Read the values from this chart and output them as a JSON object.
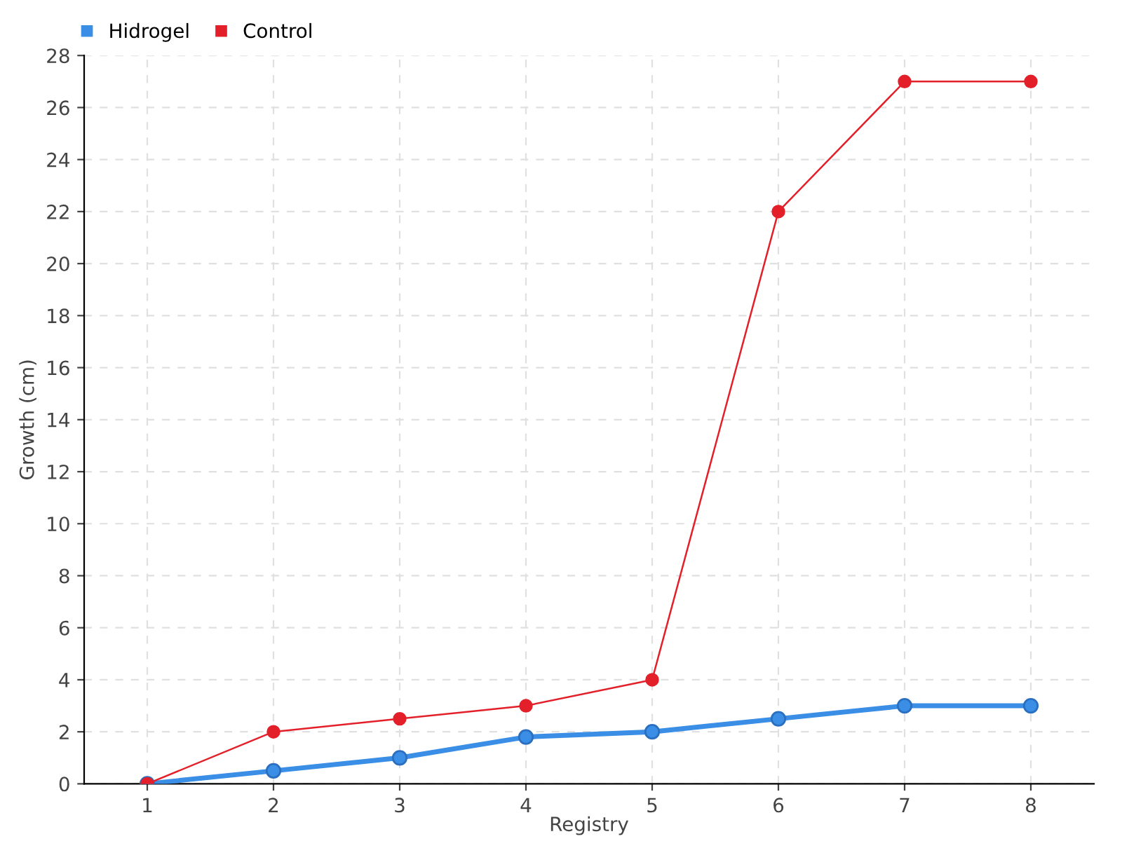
{
  "chart_data": {
    "type": "line",
    "xlabel": "Registry",
    "ylabel": "Growth (cm)",
    "categories": [
      "1",
      "2",
      "3",
      "4",
      "5",
      "6",
      "7",
      "8"
    ],
    "series": [
      {
        "name": "Hidrogel",
        "color": "#3a8ee6",
        "values": [
          0,
          0.5,
          1,
          1.8,
          2,
          2.5,
          3,
          3
        ]
      },
      {
        "name": "Control",
        "color": "#e3202a",
        "values": [
          0,
          2,
          2.5,
          3,
          4,
          22,
          27,
          27
        ]
      }
    ],
    "ylim": [
      0,
      28
    ],
    "yticks": [
      0,
      2,
      4,
      6,
      8,
      10,
      12,
      14,
      16,
      18,
      20,
      22,
      24,
      26,
      28
    ],
    "grid": true,
    "legend": "top left",
    "marker": "circle",
    "line_style": "solid"
  }
}
